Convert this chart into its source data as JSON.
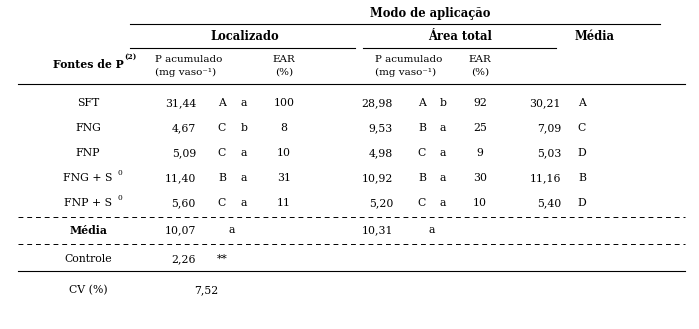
{
  "title_main": "Modo de aplicação",
  "col_header1": "Localizado",
  "col_header2": "Área total",
  "col_media": "Média",
  "row_header_main": "Fontes de P",
  "row_header_sup": "(2)",
  "rows": [
    [
      "SFT",
      "31,44",
      "A",
      "a",
      "100",
      "28,98",
      "A",
      "b",
      "92",
      "30,21",
      "A"
    ],
    [
      "FNG",
      "4,67",
      "C",
      "b",
      "8",
      "9,53",
      "B",
      "a",
      "25",
      "7,09",
      "C"
    ],
    [
      "FNP",
      "5,09",
      "C",
      "a",
      "10",
      "4,98",
      "C",
      "a",
      "9",
      "5,03",
      "D"
    ],
    [
      "FNG + S",
      "11,40",
      "B",
      "a",
      "31",
      "10,92",
      "B",
      "a",
      "30",
      "11,16",
      "B"
    ],
    [
      "FNP + S",
      "5,60",
      "C",
      "a",
      "11",
      "5,20",
      "C",
      "a",
      "10",
      "5,40",
      "D"
    ]
  ],
  "rows_s_sup": [
    false,
    false,
    false,
    true,
    true
  ],
  "media_row": [
    "10,07",
    "a",
    "10,31",
    "a"
  ],
  "controle_row": [
    "2,26",
    "**"
  ],
  "cv_row": [
    "7,52"
  ],
  "bg_color": "#ffffff",
  "text_color": "#000000",
  "fontsize": 7.8
}
